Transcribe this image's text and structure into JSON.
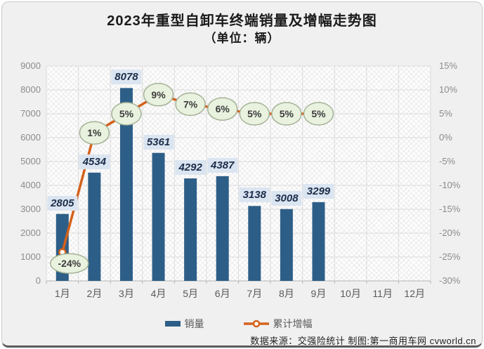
{
  "title": "2023年重型自卸车终端销量及增幅走势图",
  "subtitle": "（单位：辆）",
  "legend": {
    "bar_label": "销量",
    "line_label": "累计增幅"
  },
  "footer": "数据来源：交强险统计 制图:第一商用车网 cvworld.cn",
  "chart_data": {
    "type": "bar",
    "title": "2023年重型自卸车终端销量及增幅走势图（单位：辆）",
    "categories": [
      "1月",
      "2月",
      "3月",
      "4月",
      "5月",
      "6月",
      "7月",
      "8月",
      "9月",
      "10月",
      "11月",
      "12月"
    ],
    "series": [
      {
        "name": "销量",
        "type": "bar",
        "values": [
          2805,
          4534,
          8078,
          5361,
          4292,
          4387,
          3138,
          3008,
          3299,
          null,
          null,
          null
        ]
      },
      {
        "name": "累计增幅",
        "type": "line",
        "unit": "%",
        "values": [
          -24,
          1,
          5,
          9,
          7,
          6,
          5,
          5,
          5,
          null,
          null,
          null
        ],
        "labels": [
          "-24%",
          "1%",
          "5%",
          "9%",
          "7%",
          "6%",
          "5%",
          "5%",
          "5%"
        ]
      }
    ],
    "left_axis": {
      "min": 0,
      "max": 9000,
      "step": 1000,
      "ticks": [
        "0",
        "1000",
        "2000",
        "3000",
        "4000",
        "5000",
        "6000",
        "7000",
        "8000",
        "9000"
      ]
    },
    "right_axis": {
      "min": -30,
      "max": 15,
      "step": 5,
      "ticks": [
        "-30%",
        "-25%",
        "-20%",
        "-15%",
        "-10%",
        "-5%",
        "0%",
        "5%",
        "10%",
        "15%"
      ]
    },
    "legend_position": "bottom",
    "grid": true,
    "colors": {
      "bar": "#2d5e87",
      "line": "#d4621c",
      "marker_fill": "#e9f1df",
      "marker_stroke": "#a3b295",
      "marker_text": "#3c3c3c",
      "bar_label_bg": "#dbe5f1",
      "bar_label_text": "#1c2d4a",
      "gridline": "#dcdcdc",
      "axis_line": "#b3b3b3"
    }
  }
}
